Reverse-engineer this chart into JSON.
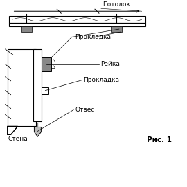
{
  "fig_label": "Рис. 1",
  "labels": {
    "потолок": "Потолок",
    "прокладка1": "Прокладка",
    "рейка": "Рейка",
    "прокладка2": "Прокладка",
    "отвес": "Отвес",
    "стена": "Стена"
  },
  "bg_color": "#ffffff",
  "line_color": "#000000",
  "gray_color": "#888888",
  "gray_light": "#bbbbbb",
  "fontsize_labels": 6.5,
  "fontsize_fig": 7.5
}
